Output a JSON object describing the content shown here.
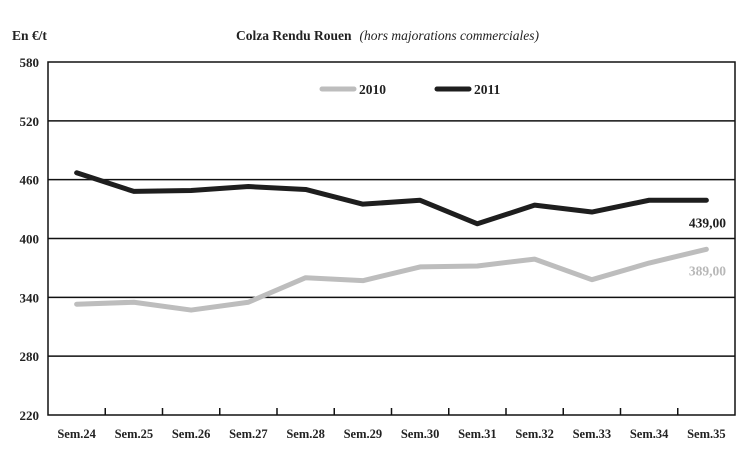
{
  "chart_data": {
    "type": "line",
    "title": "Colza Rendu Rouen",
    "subtitle": "(hors majorations commerciales)",
    "ylabel": "En €/t",
    "xlabel": "",
    "categories": [
      "Sem.24",
      "Sem.25",
      "Sem.26",
      "Sem.27",
      "Sem.28",
      "Sem.29",
      "Sem.30",
      "Sem.31",
      "Sem.32",
      "Sem.33",
      "Sem.34",
      "Sem.35"
    ],
    "ylim": [
      220,
      580
    ],
    "yticks": [
      220,
      280,
      340,
      400,
      460,
      520,
      580
    ],
    "grid": "horizontal",
    "legend_position": "top-center",
    "series": [
      {
        "name": "2010",
        "color": "#bdbdbd",
        "values": [
          333,
          335,
          327,
          335,
          360,
          357,
          371,
          372,
          379,
          358,
          375,
          389
        ],
        "end_label": "389,00"
      },
      {
        "name": "2011",
        "color": "#1e1e1e",
        "values": [
          467,
          448,
          449,
          453,
          450,
          435,
          439,
          415,
          434,
          427,
          439,
          439
        ],
        "end_label": "439,00"
      }
    ]
  }
}
